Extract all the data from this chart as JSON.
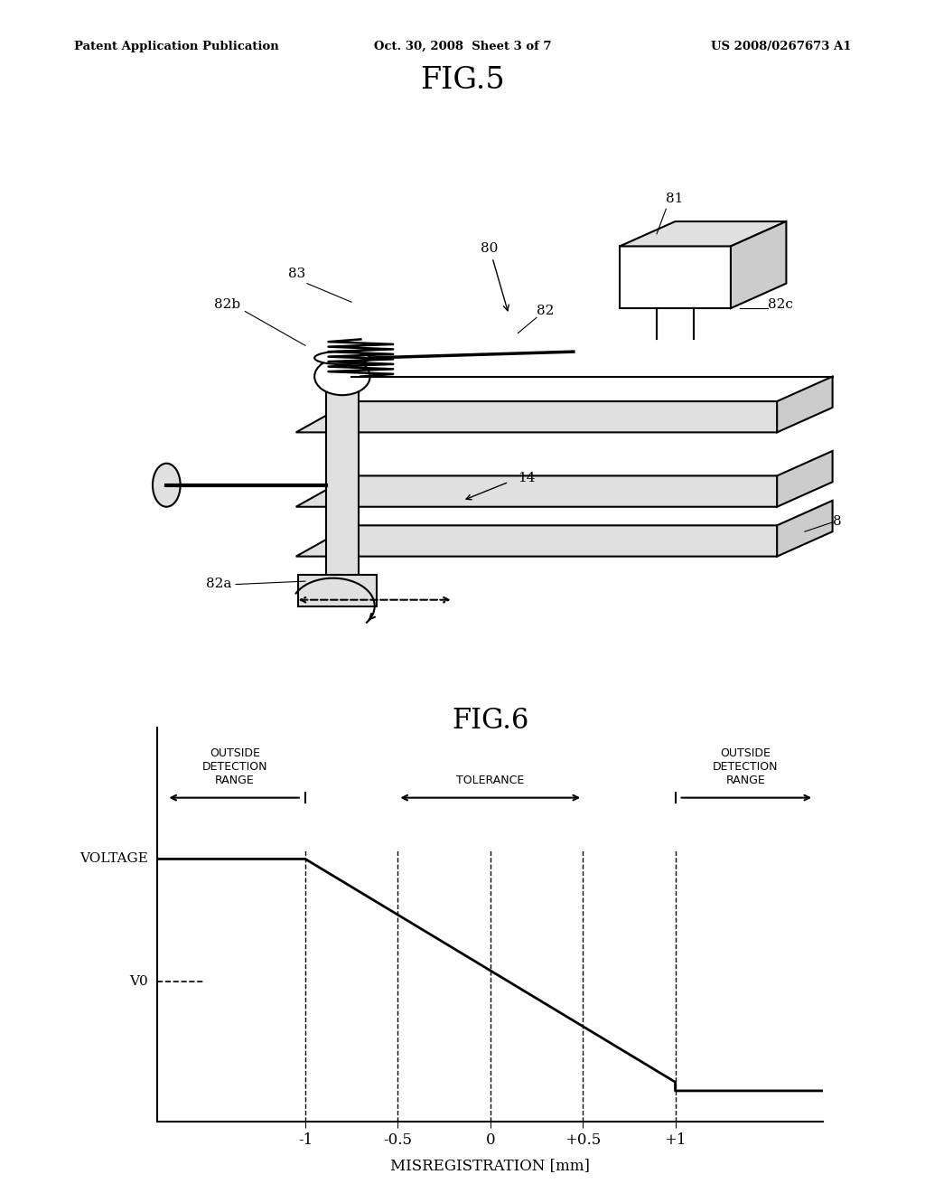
{
  "bg_color": "#ffffff",
  "header_left": "Patent Application Publication",
  "header_center": "Oct. 30, 2008  Sheet 3 of 7",
  "header_right": "US 2008/0267673 A1",
  "fig5_title": "FIG.5",
  "fig6_title": "FIG.6",
  "fig6_xlabel": "MISREGISTRATION [mm]",
  "fig6_ylabel_voltage": "VOLTAGE",
  "fig6_ylabel_v0": "V0",
  "fig6_xticks": [
    "-1",
    "-0.5",
    "0",
    "+0.5",
    "+1"
  ],
  "fig6_label_outside_left": "OUTSIDE\nDETECTION\nRANGE",
  "fig6_label_tolerance": "TOLERANCE",
  "fig6_label_outside_right": "OUTSIDE\nDETECTION\nRANGE",
  "lc": "#000000",
  "gray_light": "#e0e0e0",
  "gray_mid": "#cccccc",
  "gray_dark": "#aaaaaa"
}
